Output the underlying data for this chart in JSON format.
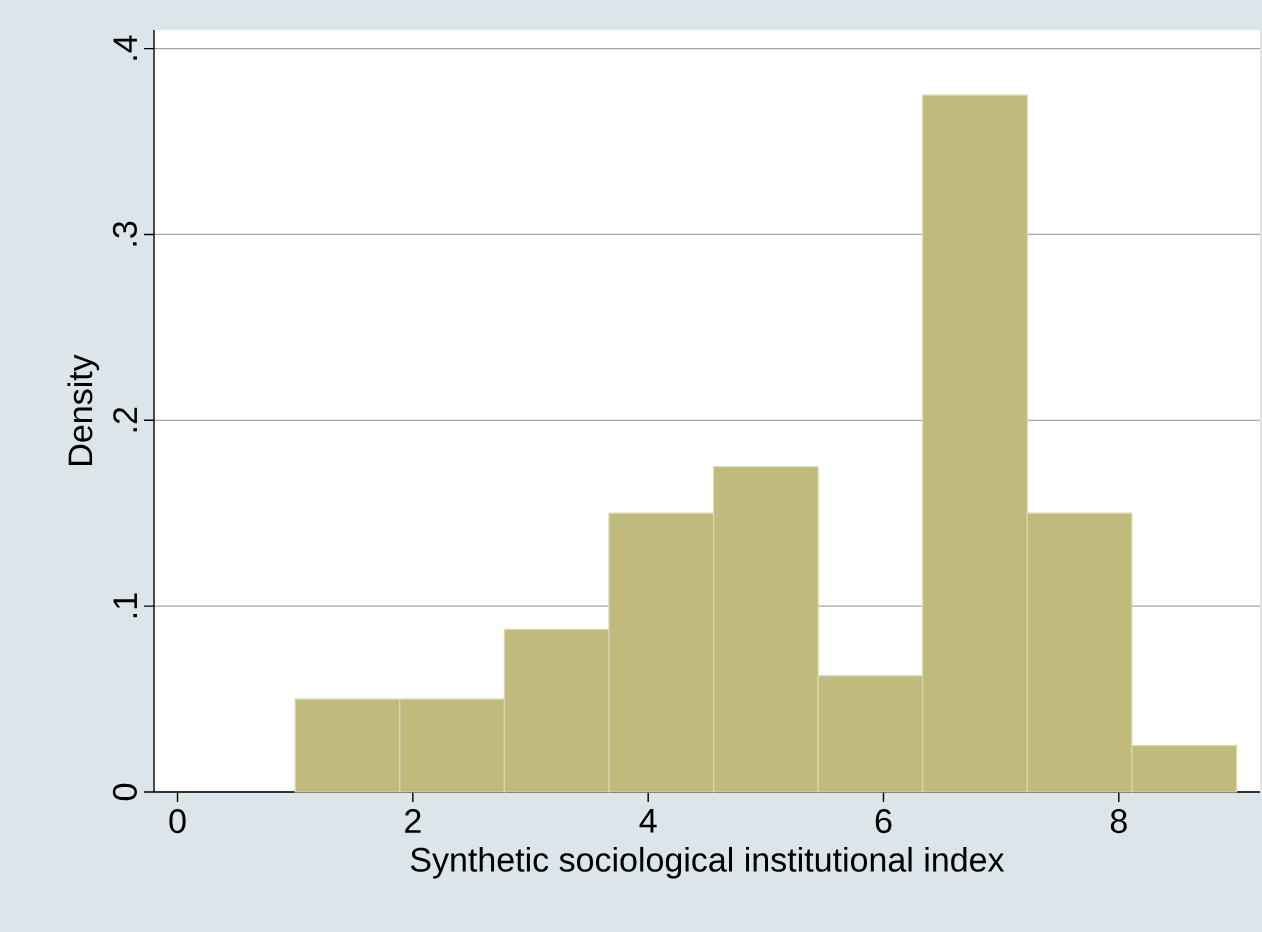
{
  "chart_data": {
    "type": "histogram",
    "xlabel": "Synthetic sociological institutional index",
    "ylabel": "Density",
    "bins": [
      1,
      1.889,
      2.778,
      3.667,
      4.556,
      5.444,
      6.333,
      7.222,
      8.111,
      9
    ],
    "values": [
      0.05,
      0.05,
      0.0875,
      0.15,
      0.175,
      0.0625,
      0.375,
      0.15,
      0.025
    ],
    "color": "#c0bb7c",
    "xlim": [
      -0.2,
      9.2
    ],
    "ylim": [
      0,
      0.41
    ],
    "xticks": [
      0,
      2,
      4,
      6,
      8
    ],
    "yticks": [
      0,
      {
        "value": 0.1,
        "label": ".1"
      },
      {
        "value": 0.2,
        "label": ".2"
      },
      {
        "value": 0.3,
        "label": ".3"
      },
      {
        "value": 0.4,
        "label": ".4"
      }
    ],
    "grid": "y"
  }
}
